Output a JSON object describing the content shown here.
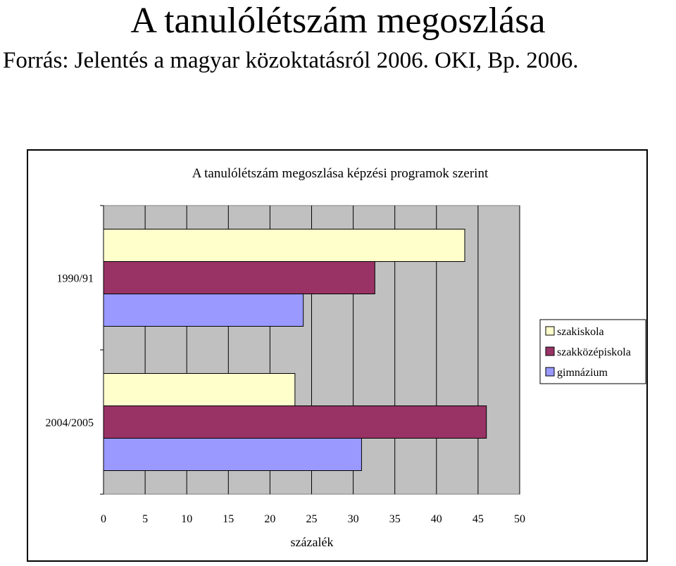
{
  "slide": {
    "title": "A tanulólétszám megoszlása",
    "subtitle": "Forrás: Jelentés a magyar közoktatásról 2006. OKI, Bp. 2006."
  },
  "chart_data": {
    "type": "bar",
    "orientation": "horizontal",
    "title": "A tanulólétszám megoszlása képzési programok szerint",
    "xlabel": "százalék",
    "ylabel": "",
    "xlim": [
      0,
      50
    ],
    "xticks": [
      0,
      5,
      10,
      15,
      20,
      25,
      30,
      35,
      40,
      45,
      50
    ],
    "grid": true,
    "legend_position": "right",
    "categories": [
      "1990/91",
      "2004/2005"
    ],
    "series": [
      {
        "name": "szakiskola",
        "color": "#FFFFCC",
        "values": [
          43.4,
          23
        ]
      },
      {
        "name": "szakközépiskola",
        "color": "#993366",
        "values": [
          32.6,
          46
        ]
      },
      {
        "name": "gimnázium",
        "color": "#9999FF",
        "values": [
          24,
          31
        ]
      }
    ],
    "plot_background": "#C0C0C0"
  }
}
